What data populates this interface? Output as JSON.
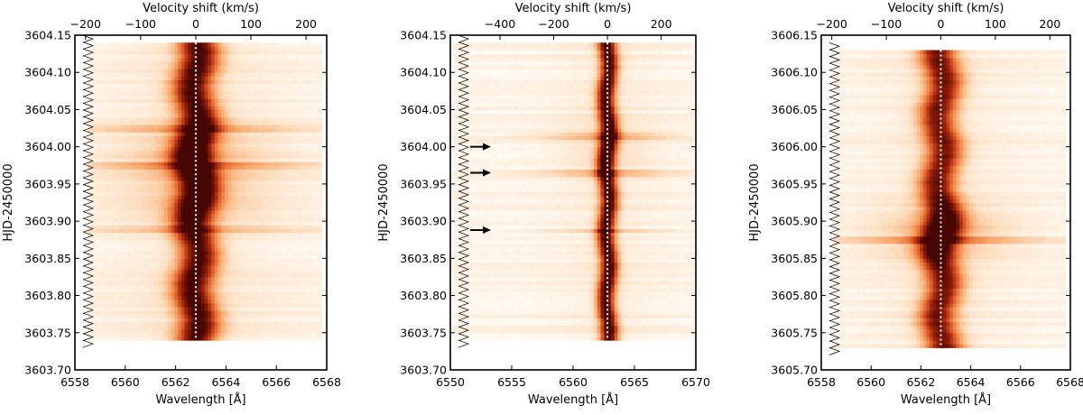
{
  "chart_data": [
    {
      "type": "heatmap",
      "panel": "left",
      "xlabel": "Wavelength [Å]",
      "x2label": "Velocity shift (km/s)",
      "ylabel": "HJD-2450000",
      "xlim": [
        6558,
        6568
      ],
      "ylim": [
        3603.7,
        3604.15
      ],
      "xticks": [
        6558,
        6560,
        6562,
        6564,
        6566,
        6568
      ],
      "xtick_labels": [
        "6558",
        "6560",
        "6562",
        "6564",
        "6566",
        "6568"
      ],
      "vticks": [
        -200,
        -100,
        0,
        100,
        200
      ],
      "vtick_labels": [
        "−200",
        "−100",
        "0",
        "100",
        "200"
      ],
      "yticks": [
        3603.7,
        3603.75,
        3603.8,
        3603.85,
        3603.9,
        3603.95,
        3604.0,
        3604.05,
        3604.1,
        3604.15
      ],
      "ytick_labels": [
        "3603.70",
        "3603.75",
        "3603.80",
        "3603.85",
        "3603.90",
        "3603.95",
        "3604.00",
        "3604.05",
        "3604.10",
        "3604.15"
      ],
      "rest_wavelength": 6562.8,
      "data_wl_range": [
        6558.5,
        6567.8
      ],
      "data_time_range": [
        3603.74,
        3604.14
      ],
      "line_center": 6562.8,
      "line_width_A": 0.8,
      "core_peak": 0.9,
      "wing_width_A": 3.2,
      "wing_amp": 0.08,
      "enhancements": [
        {
          "t": 3603.98,
          "amp": 0.55,
          "width": 0.05
        },
        {
          "t": 3603.92,
          "amp": 0.3,
          "width": 0.02
        }
      ],
      "flare_rows": [
        3604.025,
        3603.975,
        3603.89
      ],
      "markers_time_range": [
        3603.735,
        3604.145
      ],
      "arrows": []
    },
    {
      "type": "heatmap",
      "panel": "middle",
      "xlabel": "Wavelength [Å]",
      "x2label": "Velocity shift (km/s)",
      "ylabel": "HJD-2450000",
      "xlim": [
        6550,
        6570
      ],
      "ylim": [
        3603.7,
        3604.15
      ],
      "xticks": [
        6550,
        6555,
        6560,
        6565,
        6570
      ],
      "xtick_labels": [
        "6550",
        "6555",
        "6560",
        "6565",
        "6570"
      ],
      "vticks": [
        -400,
        -200,
        0,
        200
      ],
      "vtick_labels": [
        "−400",
        "−200",
        "0",
        "200"
      ],
      "yticks": [
        3603.7,
        3603.75,
        3603.8,
        3603.85,
        3603.9,
        3603.95,
        3604.0,
        3604.05,
        3604.1,
        3604.15
      ],
      "ytick_labels": [
        "3603.70",
        "3603.75",
        "3603.80",
        "3603.85",
        "3603.90",
        "3603.95",
        "3604.00",
        "3604.05",
        "3604.10",
        "3604.15"
      ],
      "rest_wavelength": 6562.8,
      "data_wl_range": [
        6550.2,
        6569.8
      ],
      "data_time_range": [
        3603.74,
        3604.14
      ],
      "line_center": 6562.8,
      "line_width_A": 0.75,
      "core_peak": 0.95,
      "wing_width_A": 4.0,
      "wing_amp": 0.05,
      "enhancements": [
        {
          "t": 3604.0,
          "amp": 0.25,
          "width": 0.04
        }
      ],
      "flare_rows": [
        3604.015,
        3603.965,
        3603.888
      ],
      "markers_time_range": [
        3603.735,
        3604.145
      ],
      "arrows": [
        3604.0,
        3603.965,
        3603.888
      ]
    },
    {
      "type": "heatmap",
      "panel": "right",
      "xlabel": "Wavelength [Å]",
      "x2label": "Velocity shift (km/s)",
      "ylabel": "HJD-2450000",
      "xlim": [
        6558,
        6568
      ],
      "ylim": [
        3605.7,
        3606.15
      ],
      "xticks": [
        6558,
        6560,
        6562,
        6564,
        6566,
        6568
      ],
      "xtick_labels": [
        "6558",
        "6560",
        "6562",
        "6564",
        "6566",
        "6568"
      ],
      "vticks": [
        -200,
        -100,
        0,
        100,
        200
      ],
      "vtick_labels": [
        "−200",
        "−100",
        "0",
        "100",
        "200"
      ],
      "yticks": [
        3605.7,
        3605.75,
        3605.8,
        3605.85,
        3605.9,
        3605.95,
        3606.0,
        3606.05,
        3606.1,
        3606.15
      ],
      "ytick_labels": [
        "3605.70",
        "3605.75",
        "3605.80",
        "3605.85",
        "3605.90",
        "3605.95",
        "3606.00",
        "3606.05",
        "3606.10",
        "3606.15"
      ],
      "rest_wavelength": 6562.8,
      "data_wl_range": [
        6558.5,
        6567.8
      ],
      "data_time_range": [
        3605.73,
        3606.13
      ],
      "line_center": 6562.8,
      "line_width_A": 0.75,
      "core_peak": 0.8,
      "wing_width_A": 2.6,
      "wing_amp": 0.06,
      "enhancements": [
        {
          "t": 3605.885,
          "amp": 0.7,
          "width": 0.035
        }
      ],
      "flare_rows": [
        3605.875
      ],
      "markers_time_range": [
        3605.725,
        3606.135
      ],
      "arrows": []
    }
  ]
}
